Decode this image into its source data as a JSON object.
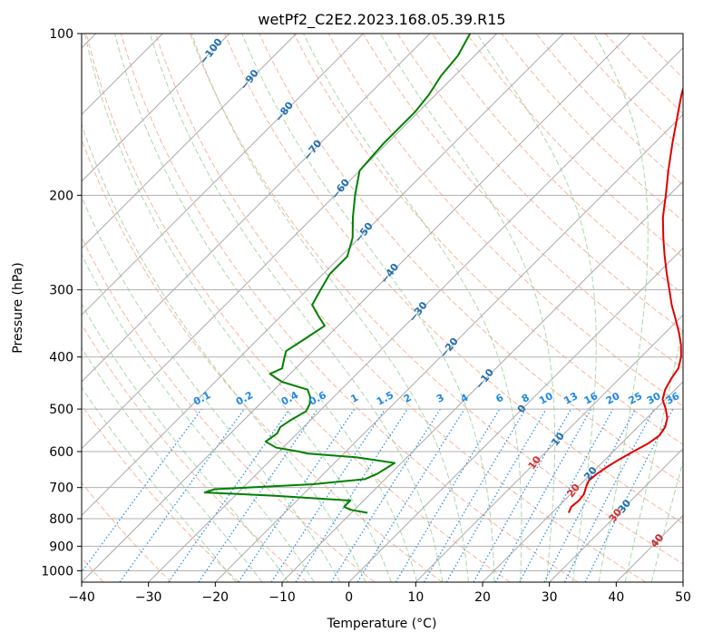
{
  "chart_data": {
    "type": "line",
    "title": "wetPf2_C2E2.2023.168.05.39.R15",
    "xlabel": "Temperature (°C)",
    "ylabel": "Pressure (hPa)",
    "xlim": [
      -40,
      50
    ],
    "ylim": [
      1050,
      100
    ],
    "y_scale": "log",
    "x_ticks": [
      -40,
      -30,
      -20,
      -10,
      0,
      10,
      20,
      30,
      40,
      50
    ],
    "x_tick_labels": [
      "−40",
      "−30",
      "−20",
      "−10",
      "0",
      "10",
      "20",
      "30",
      "40",
      "50"
    ],
    "y_ticks": [
      100,
      200,
      300,
      400,
      500,
      600,
      700,
      800,
      900,
      1000
    ],
    "y_tick_labels": [
      "100",
      "200",
      "300",
      "400",
      "500",
      "600",
      "700",
      "800",
      "900",
      "1000"
    ],
    "grid": true,
    "legend": "none",
    "colors": {
      "temperature": "#e00000",
      "dewpoint": "#008000",
      "isotherm": "#aaaaaa",
      "dry_adiabat": "#f4a582",
      "moist_adiabat": "#8fc98f",
      "mixing_ratio": "#1e88e5",
      "isotherm_label": "#1f6fb0",
      "dry_label": "#d32f2f",
      "mixing_label": "#1e88e5"
    },
    "series": [
      {
        "key": "temperature",
        "p": [
          780,
          760,
          740,
          720,
          700,
          680,
          660,
          640,
          620,
          600,
          580,
          560,
          540,
          520,
          500,
          480,
          460,
          440,
          420,
          400,
          380,
          360,
          340,
          320,
          300,
          280,
          260,
          240,
          220,
          200,
          180,
          160,
          140,
          130,
          120,
          110,
          100
        ],
        "t": [
          22.5,
          22.0,
          22.2,
          22.0,
          21.3,
          20.7,
          20.9,
          21.4,
          22.1,
          23.0,
          24.0,
          24.5,
          24.1,
          23.1,
          21.5,
          19.6,
          18.5,
          17.8,
          17.3,
          16.0,
          14.2,
          12.0,
          9.5,
          6.8,
          4.2,
          1.4,
          -1.5,
          -4.5,
          -7.6,
          -10.5,
          -13.8,
          -17.3,
          -21.1,
          -23.2,
          -25.2,
          -27.5,
          -29.8
        ]
      },
      {
        "key": "dewpoint",
        "p": [
          780,
          770,
          760,
          740,
          725,
          715,
          705,
          690,
          675,
          660,
          645,
          630,
          615,
          605,
          600,
          590,
          575,
          555,
          540,
          525,
          505,
          490,
          475,
          460,
          445,
          430,
          420,
          405,
          390,
          370,
          350,
          335,
          320,
          300,
          280,
          260,
          240,
          220,
          200,
          180,
          160,
          140,
          130,
          120,
          110,
          100
        ],
        "t": [
          -7.6,
          -10.6,
          -12.0,
          -12.0,
          -24.0,
          -35.0,
          -34.0,
          -20.0,
          -13.0,
          -12.0,
          -11.5,
          -11.0,
          -17.5,
          -25.5,
          -27.0,
          -31.0,
          -33.5,
          -33.0,
          -33.5,
          -33.0,
          -32.0,
          -32.5,
          -33.5,
          -35.0,
          -40.0,
          -43.0,
          -42.0,
          -43.0,
          -44.0,
          -43.0,
          -42.0,
          -44.5,
          -47.0,
          -48.0,
          -49.0,
          -49.0,
          -51.0,
          -54.0,
          -57.0,
          -60.0,
          -60.5,
          -60.5,
          -61.0,
          -62.0,
          -62.5,
          -64.0
        ]
      }
    ],
    "isotherm_labels": [
      "−100",
      "−90",
      "−80",
      "−70",
      "−60",
      "−50",
      "−40",
      "−30",
      "−20",
      "−10",
      "0",
      "10",
      "20",
      "30",
      "40"
    ],
    "dry_adiabat_labels": [
      "10",
      "20",
      "30",
      "40"
    ],
    "mixing_ratio_labels": [
      "0.1",
      "0.2",
      "0.4",
      "0.6",
      "1",
      "1.5",
      "2",
      "3",
      "4",
      "6",
      "8",
      "10",
      "13",
      "16",
      "20",
      "25",
      "30",
      "36"
    ]
  }
}
